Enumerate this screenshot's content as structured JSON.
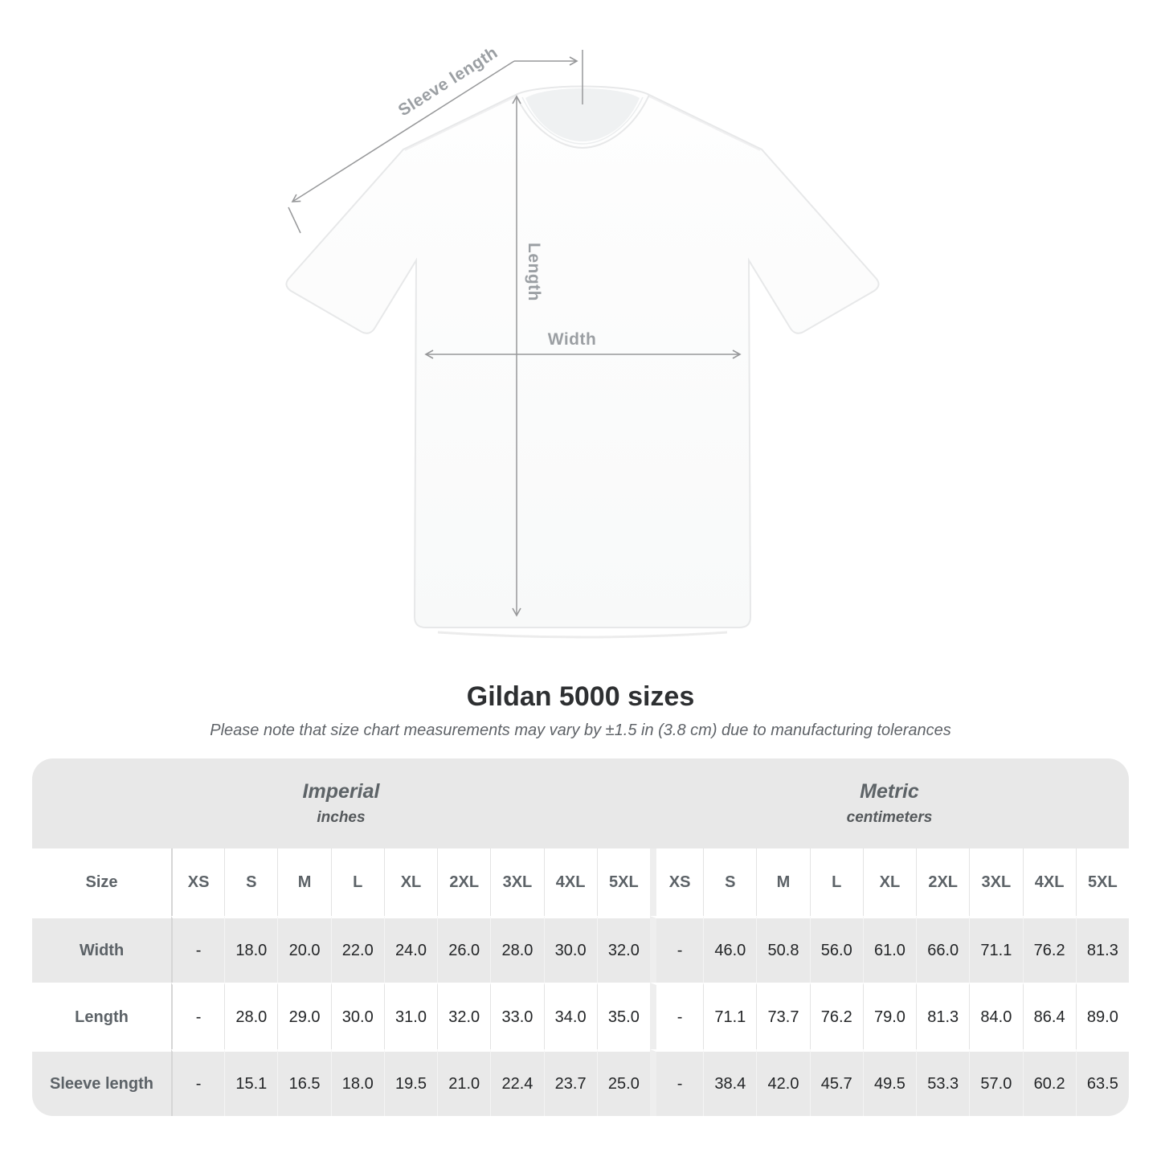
{
  "figure": {
    "sleeve_label": "Sleeve length",
    "length_label": "Length",
    "width_label": "Width"
  },
  "title": "Gildan 5000 sizes",
  "note": "Please note that size chart measurements may vary by ±1.5 in (3.8 cm) due to manufacturing tolerances",
  "table": {
    "sections": [
      {
        "name": "Imperial",
        "unit": "inches"
      },
      {
        "name": "Metric",
        "unit": "centimeters"
      }
    ],
    "size_label": "Size",
    "sizes": [
      "XS",
      "S",
      "M",
      "L",
      "XL",
      "2XL",
      "3XL",
      "4XL",
      "5XL"
    ],
    "rows": [
      {
        "label": "Width",
        "imperial": [
          "-",
          "18.0",
          "20.0",
          "22.0",
          "24.0",
          "26.0",
          "28.0",
          "30.0",
          "32.0"
        ],
        "metric": [
          "-",
          "46.0",
          "50.8",
          "56.0",
          "61.0",
          "66.0",
          "71.1",
          "76.2",
          "81.3"
        ]
      },
      {
        "label": "Length",
        "imperial": [
          "-",
          "28.0",
          "29.0",
          "30.0",
          "31.0",
          "32.0",
          "33.0",
          "34.0",
          "35.0"
        ],
        "metric": [
          "-",
          "71.1",
          "73.7",
          "76.2",
          "79.0",
          "81.3",
          "84.0",
          "86.4",
          "89.0"
        ]
      },
      {
        "label": "Sleeve length",
        "imperial": [
          "-",
          "15.1",
          "16.5",
          "18.0",
          "19.5",
          "21.0",
          "22.4",
          "23.7",
          "25.0"
        ],
        "metric": [
          "-",
          "38.4",
          "42.0",
          "45.7",
          "49.5",
          "53.3",
          "57.0",
          "60.2",
          "63.5"
        ]
      }
    ]
  },
  "colors": {
    "header_stripe_bg": "#e8e8e8",
    "row_stripe_bg": "#e9e9e9",
    "value_text": "#232527",
    "label_text": "#5c6267",
    "annotation_text": "#9b9fa3",
    "arrow_line": "#97989a"
  },
  "chart_data": {
    "type": "table",
    "title": "Gildan 5000 sizes",
    "note": "Please note that size chart measurements may vary by ±1.5 in (3.8 cm) due to manufacturing tolerances",
    "column_groups": [
      "Imperial (inches)",
      "Metric (centimeters)"
    ],
    "columns": [
      "Size",
      "XS",
      "S",
      "M",
      "L",
      "XL",
      "2XL",
      "3XL",
      "4XL",
      "5XL",
      "XS",
      "S",
      "M",
      "L",
      "XL",
      "2XL",
      "3XL",
      "4XL",
      "5XL"
    ],
    "rows": [
      [
        "Width",
        "-",
        18.0,
        20.0,
        22.0,
        24.0,
        26.0,
        28.0,
        30.0,
        32.0,
        "-",
        46.0,
        50.8,
        56.0,
        61.0,
        66.0,
        71.1,
        76.2,
        81.3
      ],
      [
        "Length",
        "-",
        28.0,
        29.0,
        30.0,
        31.0,
        32.0,
        33.0,
        34.0,
        35.0,
        "-",
        71.1,
        73.7,
        76.2,
        79.0,
        81.3,
        84.0,
        86.4,
        89.0
      ],
      [
        "Sleeve length",
        "-",
        15.1,
        16.5,
        18.0,
        19.5,
        21.0,
        22.4,
        23.7,
        25.0,
        "-",
        38.4,
        42.0,
        45.7,
        49.5,
        53.3,
        57.0,
        60.2,
        63.5
      ]
    ]
  }
}
